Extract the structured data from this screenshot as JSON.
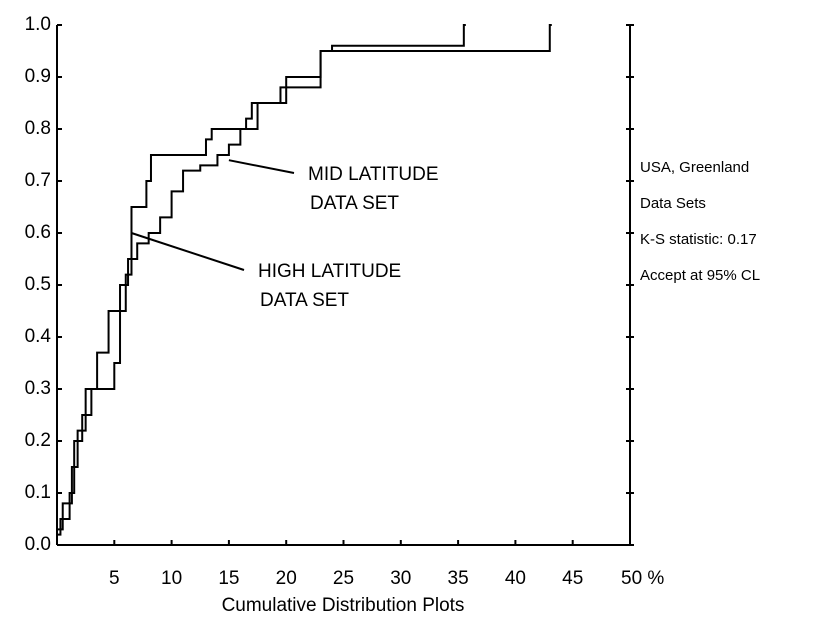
{
  "chart_data": {
    "type": "step",
    "x_label": "Cumulative Distribution Plots",
    "xlim": [
      0,
      50
    ],
    "xticks": [
      5,
      10,
      15,
      20,
      25,
      30,
      35,
      40,
      45,
      {
        "value": 50,
        "label": "50 %"
      }
    ],
    "ylim": [
      0,
      1
    ],
    "yticks": [
      {
        "value": 0,
        "label": "0.0"
      },
      0.1,
      0.2,
      0.3,
      0.4,
      0.5,
      0.6,
      0.7,
      0.8,
      0.9,
      {
        "value": 1,
        "label": "1.0"
      }
    ],
    "color": "#000000",
    "series": [
      {
        "x": [
          0,
          0.3,
          1.1,
          1.5,
          2.2,
          3.0,
          5.0,
          5.5,
          6.0,
          6.5,
          7.8,
          8.2,
          13.0,
          13.5,
          16.5,
          17.0,
          20.0,
          23.0,
          43.0
        ],
        "values": [
          0.02,
          0.05,
          0.1,
          0.2,
          0.25,
          0.3,
          0.35,
          0.45,
          0.52,
          0.65,
          0.7,
          0.75,
          0.78,
          0.8,
          0.82,
          0.85,
          0.9,
          0.95,
          1.0
        ]
      },
      {
        "x": [
          0,
          0.5,
          1.3,
          1.8,
          2.5,
          3.5,
          4.5,
          5.5,
          6.2,
          7.0,
          8.0,
          9.0,
          10.0,
          11.0,
          12.5,
          14.0,
          15.0,
          16.0,
          17.5,
          19.5,
          23.0,
          24.0,
          35.5
        ],
        "values": [
          0.03,
          0.08,
          0.15,
          0.22,
          0.3,
          0.37,
          0.45,
          0.5,
          0.55,
          0.58,
          0.6,
          0.63,
          0.68,
          0.72,
          0.73,
          0.75,
          0.77,
          0.8,
          0.85,
          0.88,
          0.95,
          0.96,
          1.0
        ]
      }
    ],
    "annotations": [
      {
        "lines": [
          "MID LATITUDE",
          "DATA SET"
        ],
        "x": 15,
        "y": 0.74
      },
      {
        "lines": [
          "HIGH LATITUDE",
          "DATA SET"
        ],
        "x": 6.5,
        "y": 0.6
      }
    ],
    "side_notes": [
      "USA, Greenland",
      "Data Sets",
      "K-S statistic: 0.17",
      "Accept at 95% CL"
    ]
  }
}
